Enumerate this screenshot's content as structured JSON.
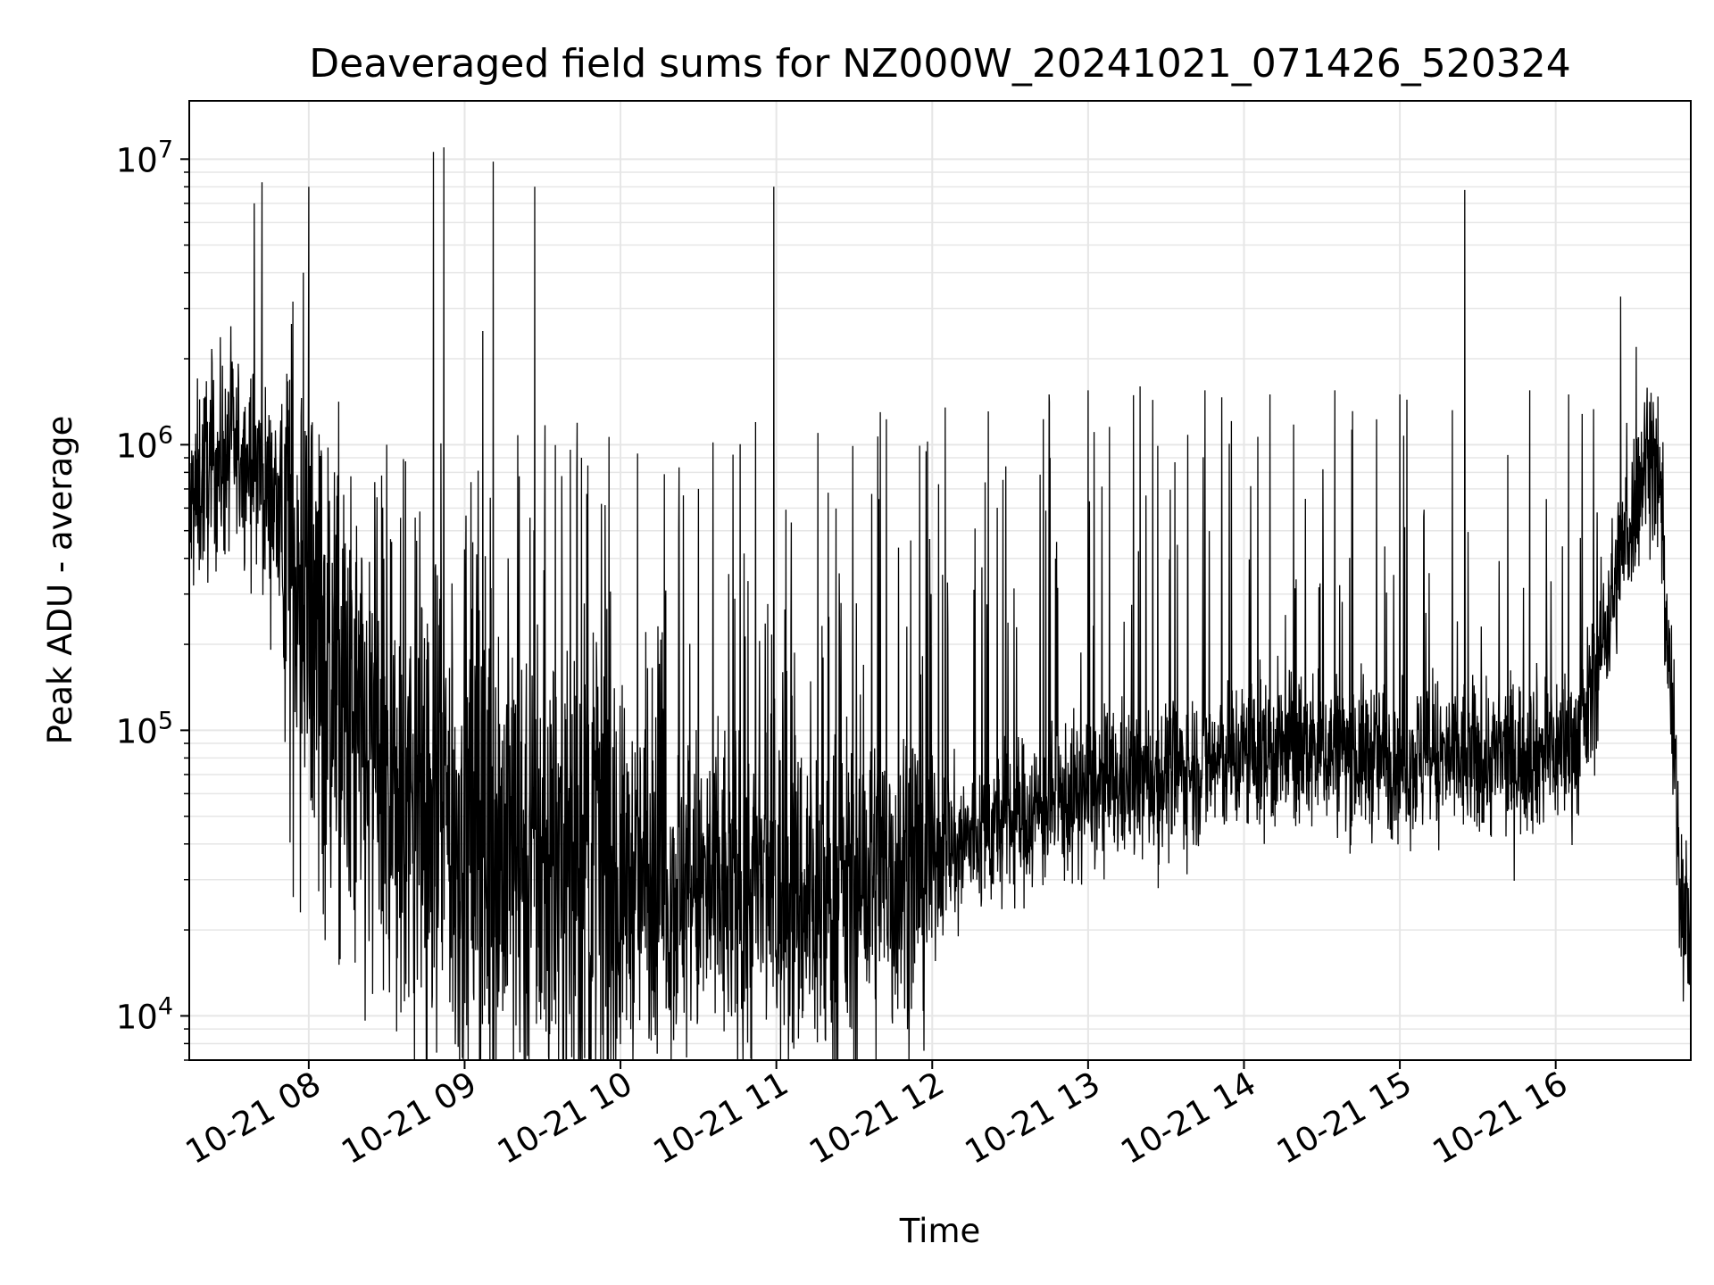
{
  "chart_data": {
    "type": "line",
    "title": "Deaveraged field sums for NZ000W_20241021_071426_520324",
    "xlabel": "Time",
    "ylabel": "Peak ADU - average",
    "x_axis": "datetime",
    "x_range": [
      "2024-10-21 07:14",
      "2024-10-21 16:52"
    ],
    "x_ticks": [
      {
        "value": "2024-10-21 08:00",
        "label": "10-21 08"
      },
      {
        "value": "2024-10-21 09:00",
        "label": "10-21 09"
      },
      {
        "value": "2024-10-21 10:00",
        "label": "10-21 10"
      },
      {
        "value": "2024-10-21 11:00",
        "label": "10-21 11"
      },
      {
        "value": "2024-10-21 12:00",
        "label": "10-21 12"
      },
      {
        "value": "2024-10-21 13:00",
        "label": "10-21 13"
      },
      {
        "value": "2024-10-21 14:00",
        "label": "10-21 14"
      },
      {
        "value": "2024-10-21 15:00",
        "label": "10-21 15"
      },
      {
        "value": "2024-10-21 16:00",
        "label": "10-21 16"
      }
    ],
    "y_scale": "log",
    "ylim": [
      7000,
      16000000
    ],
    "y_ticks": [
      {
        "value": 10000,
        "base": "10",
        "exp": "4"
      },
      {
        "value": 100000,
        "base": "10",
        "exp": "5"
      },
      {
        "value": 1000000,
        "base": "10",
        "exp": "6"
      },
      {
        "value": 10000000,
        "base": "10",
        "exp": "7"
      }
    ],
    "grid": true,
    "grid_color": "#e6e6e6",
    "line_color": "#000000",
    "series": [
      {
        "baseline": [
          [
            "2024-10-21 07:14",
            550000
          ],
          [
            "2024-10-21 07:20",
            800000
          ],
          [
            "2024-10-21 07:30",
            950000
          ],
          [
            "2024-10-21 07:40",
            850000
          ],
          [
            "2024-10-21 07:50",
            500000
          ],
          [
            "2024-10-21 08:00",
            250000
          ],
          [
            "2024-10-21 08:10",
            130000
          ],
          [
            "2024-10-21 08:20",
            80000
          ],
          [
            "2024-10-21 08:30",
            60000
          ],
          [
            "2024-10-21 08:45",
            50000
          ],
          [
            "2024-10-21 09:00",
            42000
          ],
          [
            "2024-10-21 09:30",
            36000
          ],
          [
            "2024-10-21 10:00",
            30000
          ],
          [
            "2024-10-21 10:30",
            27000
          ],
          [
            "2024-10-21 11:00",
            26000
          ],
          [
            "2024-10-21 11:20",
            25000
          ],
          [
            "2024-10-21 11:40",
            30000
          ],
          [
            "2024-10-21 12:00",
            36000
          ],
          [
            "2024-10-21 12:30",
            48000
          ],
          [
            "2024-10-21 13:00",
            60000
          ],
          [
            "2024-10-21 13:30",
            70000
          ],
          [
            "2024-10-21 14:00",
            82000
          ],
          [
            "2024-10-21 14:30",
            85000
          ],
          [
            "2024-10-21 15:00",
            80000
          ],
          [
            "2024-10-21 15:30",
            78000
          ],
          [
            "2024-10-21 16:00",
            85000
          ],
          [
            "2024-10-21 16:10",
            95000
          ],
          [
            "2024-10-21 16:20",
            250000
          ],
          [
            "2024-10-21 16:30",
            600000
          ],
          [
            "2024-10-21 16:36",
            1000000
          ],
          [
            "2024-10-21 16:40",
            700000
          ],
          [
            "2024-10-21 16:45",
            100000
          ],
          [
            "2024-10-21 16:48",
            30000
          ],
          [
            "2024-10-21 16:52",
            18000
          ]
        ],
        "peaks": [
          [
            "2024-10-21 07:39",
            7000000
          ],
          [
            "2024-10-21 07:42",
            8300000
          ],
          [
            "2024-10-21 08:00",
            8000000
          ],
          [
            "2024-10-21 08:48",
            10600000
          ],
          [
            "2024-10-21 08:52",
            11000000
          ],
          [
            "2024-10-21 09:07",
            2500000
          ],
          [
            "2024-10-21 09:11",
            9800000
          ],
          [
            "2024-10-21 09:27",
            8000000
          ],
          [
            "2024-10-21 10:59",
            8000000
          ],
          [
            "2024-10-21 15:25",
            7800000
          ],
          [
            "2024-10-21 16:25",
            3300000
          ],
          [
            "2024-10-21 16:31",
            2200000
          ],
          [
            "2024-10-21 07:30",
            2600000
          ],
          [
            "2024-10-21 08:30",
            1000000
          ],
          [
            "2024-10-21 09:45",
            900000
          ],
          [
            "2024-10-21 10:30",
            700000
          ],
          [
            "2024-10-21 10:52",
            1200000
          ],
          [
            "2024-10-21 11:16",
            1100000
          ],
          [
            "2024-10-21 11:40",
            1300000
          ],
          [
            "2024-10-21 12:05",
            1350000
          ],
          [
            "2024-10-21 12:45",
            1500000
          ],
          [
            "2024-10-21 13:00",
            1550000
          ],
          [
            "2024-10-21 13:20",
            1600000
          ],
          [
            "2024-10-21 13:45",
            1550000
          ],
          [
            "2024-10-21 14:10",
            1500000
          ],
          [
            "2024-10-21 14:35",
            1550000
          ],
          [
            "2024-10-21 15:00",
            1500000
          ],
          [
            "2024-10-21 15:50",
            1550000
          ],
          [
            "2024-10-21 16:05",
            1500000
          ]
        ],
        "dips": [
          [
            "2024-10-21 08:20",
            30000
          ],
          [
            "2024-10-21 08:35",
            22000
          ],
          [
            "2024-10-21 09:05",
            17000
          ],
          [
            "2024-10-21 10:45",
            14000
          ],
          [
            "2024-10-21 11:17",
            10000
          ],
          [
            "2024-10-21 12:10",
            19000
          ],
          [
            "2024-10-21 13:27",
            28000
          ],
          [
            "2024-10-21 15:15",
            38000
          ]
        ]
      }
    ]
  }
}
